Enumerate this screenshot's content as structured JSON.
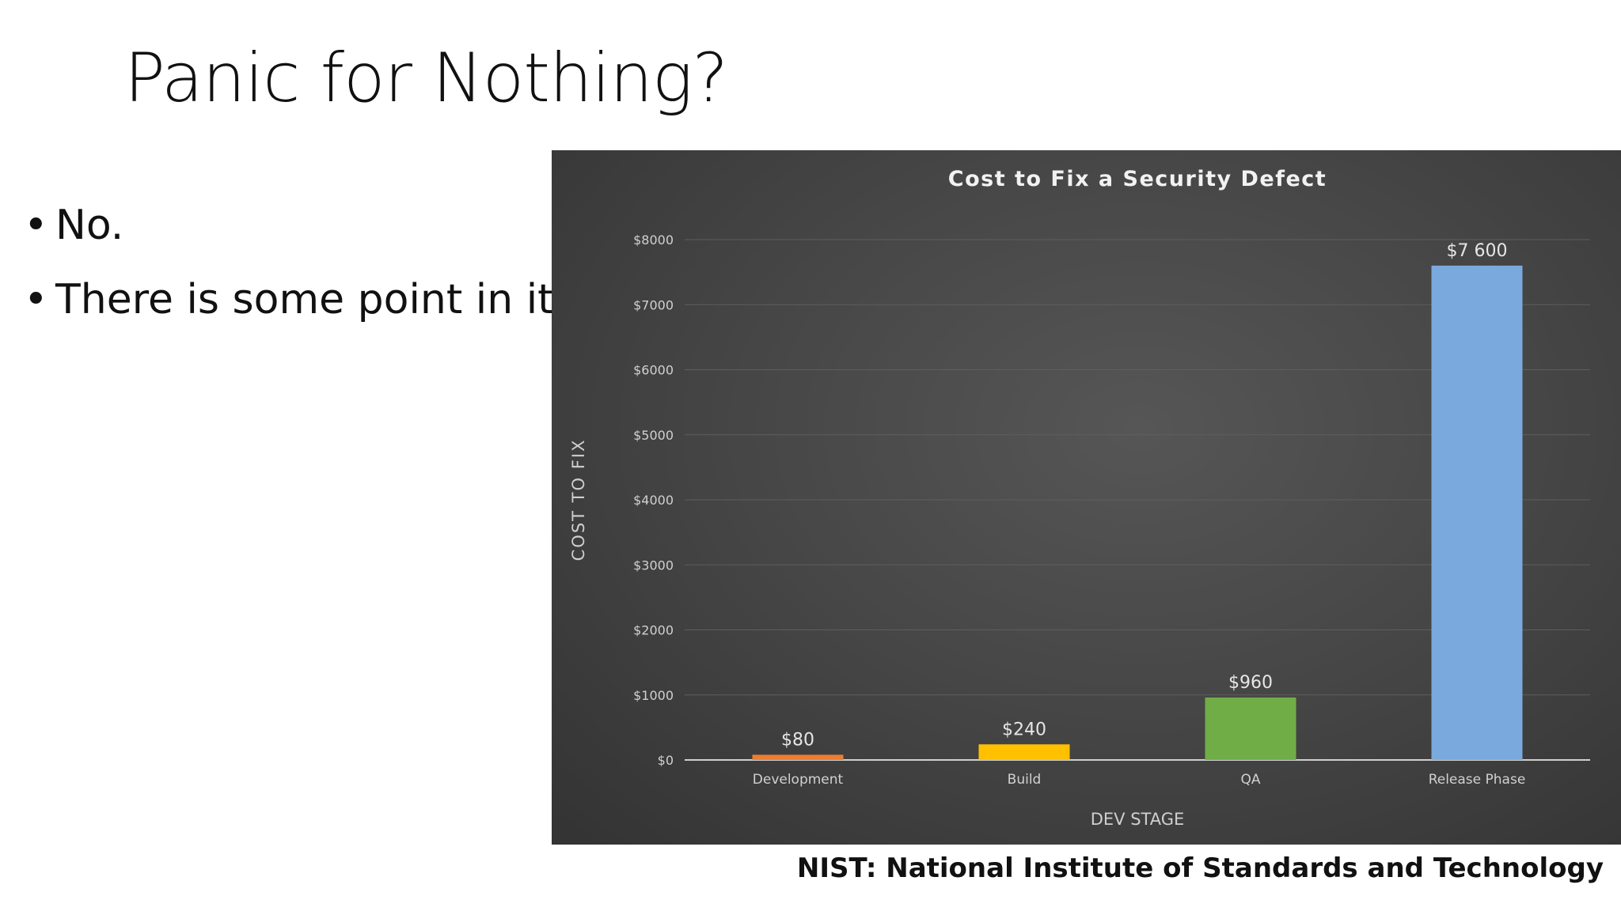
{
  "slide": {
    "title": "Panic for Nothing?",
    "bullets": [
      "No.",
      "There is some point in it."
    ],
    "source_note": "NIST: National Institute of Standards and Technology"
  },
  "chart_data": {
    "type": "bar",
    "title": "Cost to Fix a Security Defect",
    "xlabel": "DEV STAGE",
    "ylabel": "COST TO FIX",
    "categories": [
      "Development",
      "Build",
      "QA",
      "Release Phase"
    ],
    "values": [
      80,
      240,
      960,
      7600
    ],
    "data_labels": [
      "$80",
      "$240",
      "$960",
      "$7 600"
    ],
    "colors": [
      "#ed7d31",
      "#ffc000",
      "#70ad47",
      "#7aa9dd"
    ],
    "ylim": [
      0,
      8000
    ],
    "yticks": [
      0,
      1000,
      2000,
      3000,
      4000,
      5000,
      6000,
      7000,
      8000
    ],
    "ytick_labels": [
      "$0",
      "$1000",
      "$2000",
      "$3000",
      "$4000",
      "$5000",
      "$6000",
      "$7000",
      "$8000"
    ],
    "grid": true,
    "legend": "none"
  }
}
